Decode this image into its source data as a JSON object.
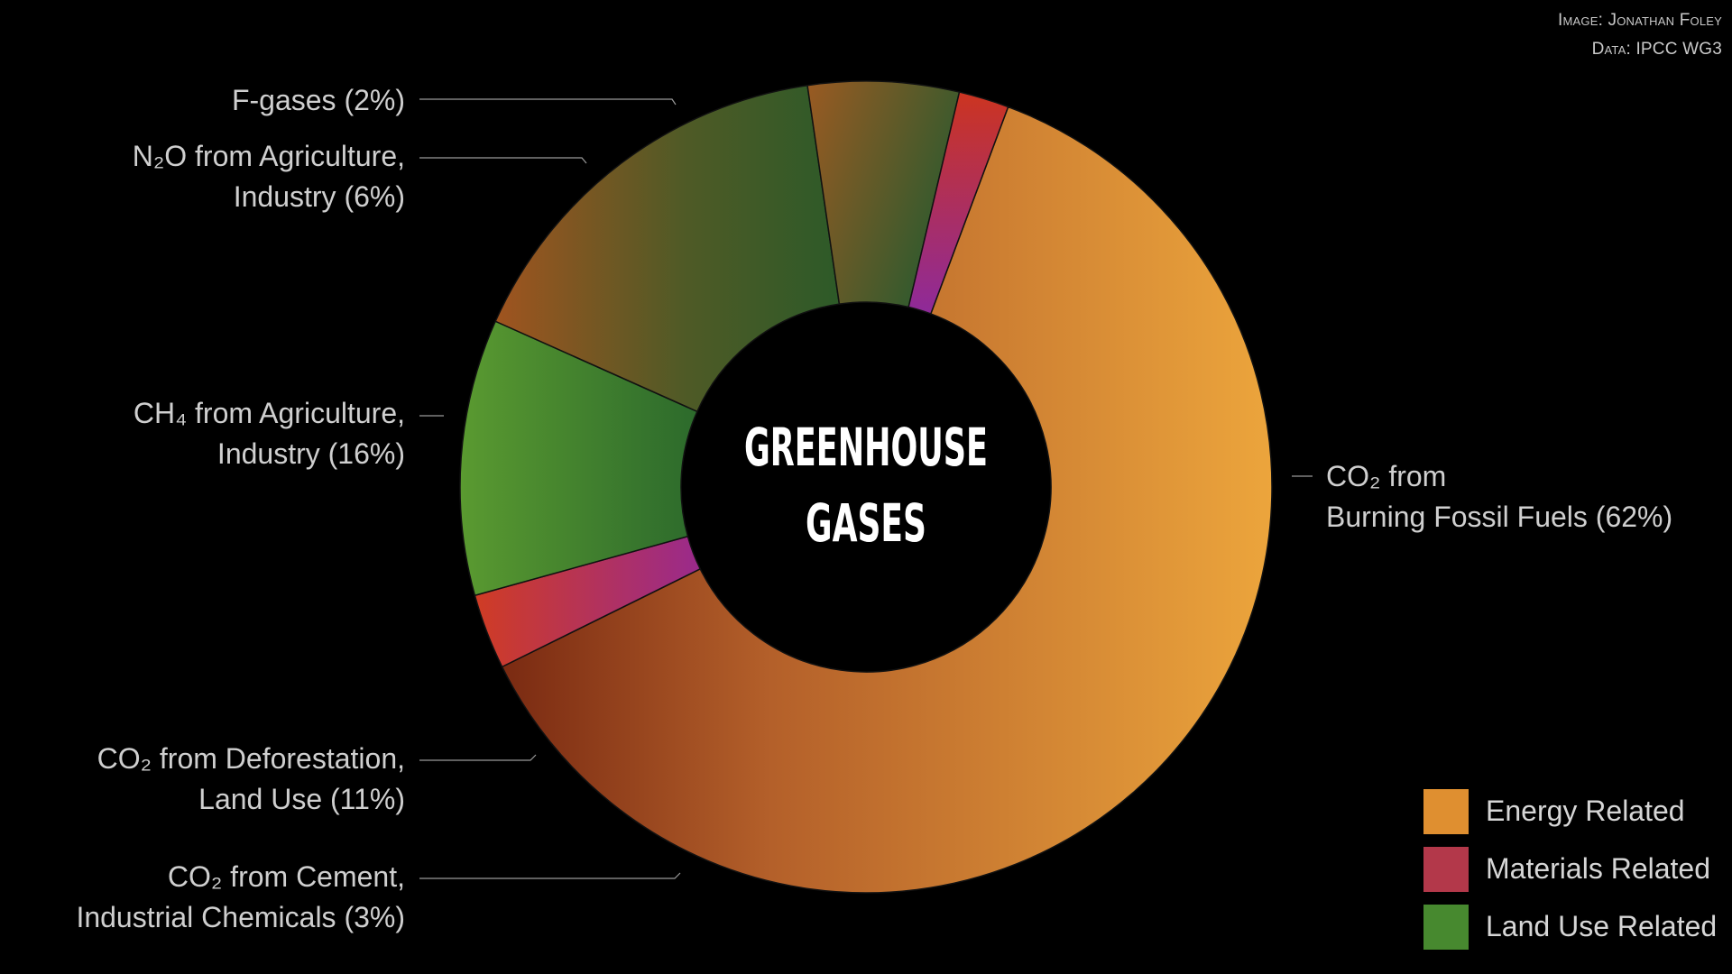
{
  "credits": {
    "image": "Image: Jonathan Foley",
    "data": "Data: IPCC WG3"
  },
  "center_title": [
    "GREENHOUSE",
    "GASES"
  ],
  "colors": {
    "energy": "#e0922f",
    "materials": "#b33a48",
    "land_use": "#4a8f30",
    "background": "#000000"
  },
  "legend": [
    {
      "label": "Energy Related",
      "color": "#df8f30"
    },
    {
      "label": "Materials Related",
      "color": "#b3384a"
    },
    {
      "label": "Land Use Related",
      "color": "#47892f"
    }
  ],
  "chart_data": {
    "type": "pie",
    "title": "GREENHOUSE GASES",
    "slices": [
      {
        "name": "CO₂ from Burning Fossil Fuels",
        "value": 62,
        "category": "Energy Related",
        "label_lines": [
          "CO₂ from",
          "Burning Fossil Fuels (62%)"
        ]
      },
      {
        "name": "CO₂ from Cement, Industrial Chemicals",
        "value": 3,
        "category": "Materials Related",
        "label_lines": [
          "CO₂ from Cement,",
          "Industrial Chemicals (3%)"
        ]
      },
      {
        "name": "CO₂ from Deforestation, Land Use",
        "value": 11,
        "category": "Land Use Related",
        "label_lines": [
          "CO₂ from Deforestation,",
          "Land Use (11%)"
        ]
      },
      {
        "name": "CH₄ from Agriculture, Industry",
        "value": 16,
        "category": "Land Use Related",
        "label_lines": [
          "CH₄ from Agriculture,",
          "Industry (16%)"
        ]
      },
      {
        "name": "N₂O from Agriculture, Industry",
        "value": 6,
        "category": "Land Use Related",
        "label_lines": [
          "N₂O from Agriculture,",
          "Industry (6%)"
        ]
      },
      {
        "name": "F-gases",
        "value": 2,
        "category": "Materials Related",
        "label_lines": [
          "F-gases (2%)"
        ]
      }
    ]
  }
}
